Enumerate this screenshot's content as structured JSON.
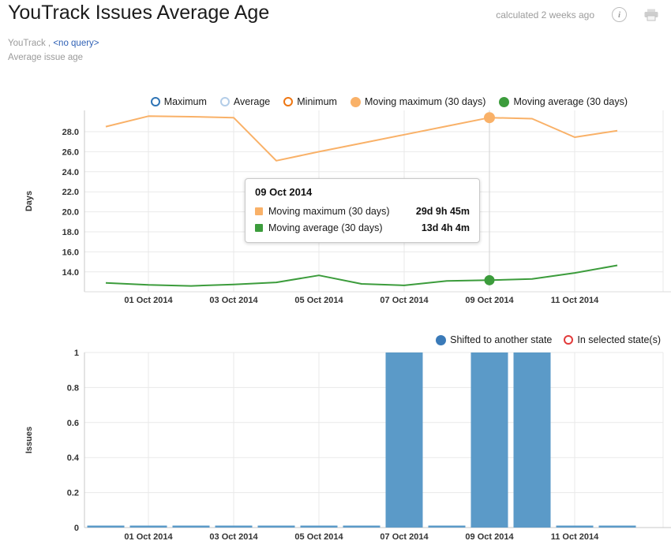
{
  "header": {
    "title": "YouTrack Issues Average Age",
    "calculated": "calculated 2 weeks ago"
  },
  "breadcrumb": {
    "project": "YouTrack ,",
    "query_link": "<no query>",
    "subtitle": "Average issue age"
  },
  "tooltip": {
    "title": "09 Oct 2014",
    "rows": [
      {
        "label": "Moving maximum (30 days)",
        "value": "29d 9h 45m",
        "color": "#f9b168"
      },
      {
        "label": "Moving average (30 days)",
        "value": "13d 4h 4m",
        "color": "#3c9c3c"
      }
    ]
  },
  "chart_data": [
    {
      "type": "line",
      "ylabel": "Days",
      "x": [
        "30 Sep 2014",
        "01 Oct 2014",
        "02 Oct 2014",
        "03 Oct 2014",
        "04 Oct 2014",
        "05 Oct 2014",
        "06 Oct 2014",
        "07 Oct 2014",
        "08 Oct 2014",
        "09 Oct 2014",
        "10 Oct 2014",
        "11 Oct 2014",
        "12 Oct 2014"
      ],
      "xticks": [
        {
          "index": 1,
          "label": "01 Oct 2014"
        },
        {
          "index": 3,
          "label": "03 Oct 2014"
        },
        {
          "index": 5,
          "label": "05 Oct 2014"
        },
        {
          "index": 7,
          "label": "07 Oct 2014"
        },
        {
          "index": 9,
          "label": "09 Oct 2014"
        },
        {
          "index": 11,
          "label": "11 Oct 2014"
        }
      ],
      "yticks": [
        {
          "value": 28,
          "label": "28.0"
        },
        {
          "value": 26,
          "label": "26.0"
        },
        {
          "value": 24,
          "label": "24.0"
        },
        {
          "value": 22,
          "label": "22.0"
        },
        {
          "value": 20,
          "label": "20.0"
        },
        {
          "value": 18,
          "label": "18.0"
        },
        {
          "value": 16,
          "label": "16.0"
        },
        {
          "value": 14,
          "label": "14.0"
        }
      ],
      "ylim": [
        12.0,
        30.1
      ],
      "grid": true,
      "legend_position": "top",
      "legend": [
        {
          "label": "Maximum",
          "style": "ring",
          "color": "#2e74b5"
        },
        {
          "label": "Average",
          "style": "ring",
          "color": "#b3cde8"
        },
        {
          "label": "Minimum",
          "style": "ring",
          "color": "#ee7612"
        },
        {
          "label": "Moving maximum (30 days)",
          "style": "dot",
          "color": "#f9b168"
        },
        {
          "label": "Moving average (30 days)",
          "style": "dot",
          "color": "#3c9c3c"
        }
      ],
      "series": [
        {
          "name": "Moving maximum (30 days)",
          "color": "#f9b168",
          "values": [
            28.5,
            29.55,
            29.5,
            29.4,
            25.1,
            26.0,
            26.85,
            27.7,
            28.55,
            29.4,
            29.3,
            27.45,
            28.1
          ],
          "marker_index": 9
        },
        {
          "name": "Moving average (30 days)",
          "color": "#3c9c3c",
          "values": [
            12.9,
            12.7,
            12.6,
            12.75,
            12.95,
            13.65,
            12.8,
            12.65,
            13.1,
            13.17,
            13.3,
            13.9,
            14.65
          ],
          "marker_index": 9
        }
      ],
      "hover_index": 9
    },
    {
      "type": "bar",
      "ylabel": "Issues",
      "categories": [
        "30 Sep 2014",
        "01 Oct 2014",
        "02 Oct 2014",
        "03 Oct 2014",
        "04 Oct 2014",
        "05 Oct 2014",
        "06 Oct 2014",
        "07 Oct 2014",
        "08 Oct 2014",
        "09 Oct 2014",
        "10 Oct 2014",
        "11 Oct 2014",
        "12 Oct 2014"
      ],
      "xticks": [
        {
          "index": 1,
          "label": "01 Oct 2014"
        },
        {
          "index": 3,
          "label": "03 Oct 2014"
        },
        {
          "index": 5,
          "label": "05 Oct 2014"
        },
        {
          "index": 7,
          "label": "07 Oct 2014"
        },
        {
          "index": 9,
          "label": "09 Oct 2014"
        },
        {
          "index": 11,
          "label": "11 Oct 2014"
        }
      ],
      "yticks": [
        {
          "value": 1,
          "label": "1"
        },
        {
          "value": 0.8,
          "label": "0.8"
        },
        {
          "value": 0.6,
          "label": "0.6"
        },
        {
          "value": 0.4,
          "label": "0.4"
        },
        {
          "value": 0.2,
          "label": "0.2"
        },
        {
          "value": 0,
          "label": "0"
        }
      ],
      "ylim": [
        0,
        1
      ],
      "grid": true,
      "legend": [
        {
          "label": "Shifted to another state",
          "style": "dot",
          "color": "#3a7ab8"
        },
        {
          "label": "In selected state(s)",
          "style": "ring",
          "color": "#e23b3b"
        }
      ],
      "series": [
        {
          "name": "Shifted to another state",
          "color": "#5b9ac8",
          "values": [
            0,
            0,
            0,
            0,
            0,
            0,
            0,
            1,
            0,
            1,
            1,
            0,
            0
          ]
        },
        {
          "name": "In selected state(s)",
          "color": "#e23b3b",
          "values": [
            0,
            0,
            0,
            0,
            0,
            0,
            0,
            0,
            0,
            0,
            0,
            0,
            0
          ]
        }
      ]
    }
  ]
}
